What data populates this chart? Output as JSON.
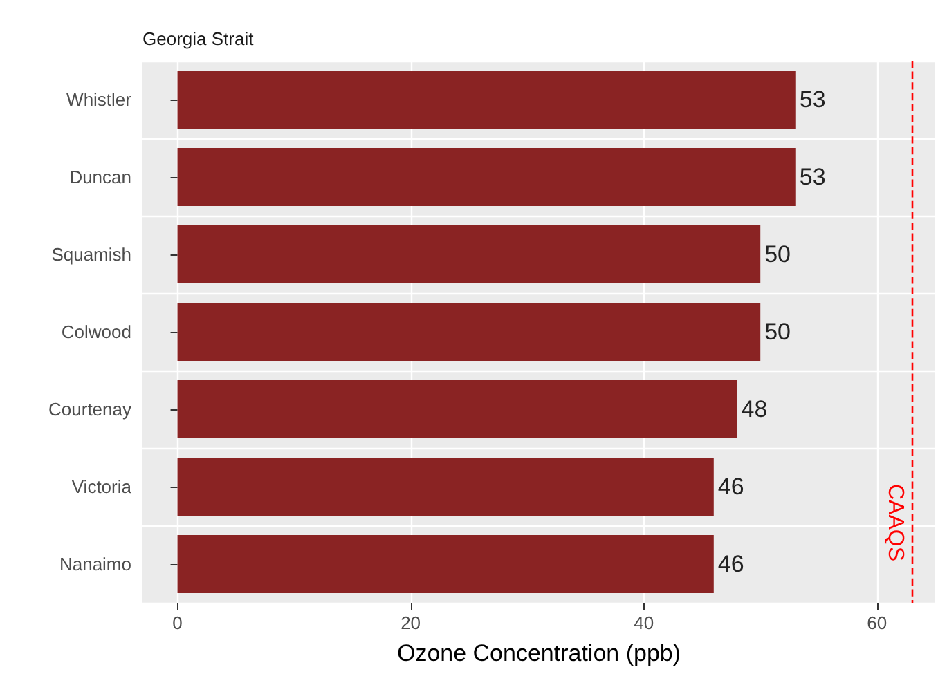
{
  "chart_data": {
    "type": "bar",
    "orientation": "horizontal",
    "title": "Georgia Strait",
    "xlabel": "Ozone Concentration (ppb)",
    "categories": [
      "Whistler",
      "Duncan",
      "Squamish",
      "Colwood",
      "Courtenay",
      "Victoria",
      "Nanaimo"
    ],
    "values": [
      53,
      53,
      50,
      50,
      48,
      46,
      46
    ],
    "color": "#8a2323",
    "xlim": [
      -3,
      65
    ],
    "xticks": [
      0,
      20,
      40,
      60
    ],
    "grid": true,
    "data_labels": true,
    "ref_lines": [
      {
        "axis": "x",
        "value": 63,
        "label": "CAAQS",
        "color": "#ff0000",
        "line_style": "dashed"
      }
    ]
  }
}
